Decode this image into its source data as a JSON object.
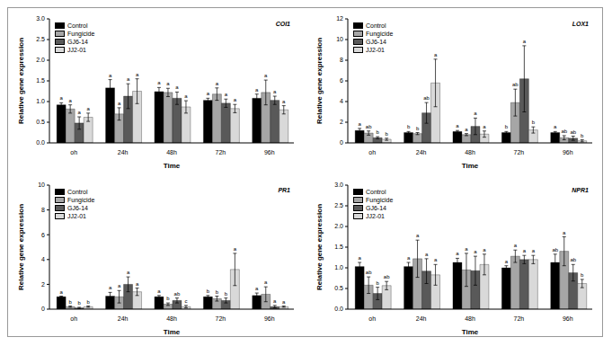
{
  "chart_data": [
    {
      "type": "bar",
      "title": "COI1",
      "x_label": "Time",
      "y_label": "Relative gene expression",
      "legend": "top-left",
      "categories": [
        "oh",
        "24h",
        "48h",
        "72h",
        "96h"
      ],
      "ylim": [
        0,
        3
      ],
      "yticks": [
        {
          "value": 0,
          "label": "0.0"
        },
        0.5,
        {
          "value": 1,
          "label": "1.0"
        },
        1.5,
        {
          "value": 2,
          "label": "2.0"
        },
        2.5,
        {
          "value": 3,
          "label": "3.0"
        }
      ],
      "series": [
        {
          "name": "Control",
          "color": "#000000",
          "values": [
            0.92,
            1.33,
            1.24,
            1.03,
            1.08
          ],
          "errors": [
            0.05,
            0.2,
            0.1,
            0.05,
            0.1
          ],
          "letters": [
            "a",
            "a",
            "a",
            "a",
            "a"
          ]
        },
        {
          "name": "Fungicide",
          "color": "#a6a6a6",
          "values": [
            0.82,
            0.7,
            1.22,
            1.18,
            1.22
          ],
          "errors": [
            0.1,
            0.15,
            0.1,
            0.15,
            0.3
          ],
          "letters": [
            "a",
            "a",
            "a",
            "a",
            "a"
          ]
        },
        {
          "name": "GJ6-14",
          "color": "#595959",
          "values": [
            0.48,
            1.13,
            1.08,
            0.96,
            1.03
          ],
          "errors": [
            0.15,
            0.3,
            0.15,
            0.1,
            0.1
          ],
          "letters": [
            "a",
            "a",
            "a",
            "a",
            "a"
          ]
        },
        {
          "name": "JJ2-01",
          "color": "#d9d9d9",
          "values": [
            0.62,
            1.25,
            0.87,
            0.83,
            0.8
          ],
          "errors": [
            0.1,
            0.3,
            0.15,
            0.1,
            0.1
          ],
          "letters": [
            "a",
            "a",
            "a",
            "a",
            "a"
          ]
        }
      ]
    },
    {
      "type": "bar",
      "title": "LOX1",
      "x_label": "Time",
      "y_label": "Relative gene expression",
      "legend": "top-left",
      "categories": [
        "oh",
        "24h",
        "48h",
        "72h",
        "96h"
      ],
      "ylim": [
        0,
        12
      ],
      "yticks": [
        0,
        2,
        4,
        6,
        8,
        10,
        12
      ],
      "series": [
        {
          "name": "Control",
          "color": "#000000",
          "values": [
            1.2,
            1.0,
            1.1,
            1.0,
            1.0
          ],
          "errors": [
            0.2,
            0.1,
            0.1,
            0.1,
            0.1
          ],
          "letters": [
            "a",
            "b",
            "a",
            "b",
            "a"
          ]
        },
        {
          "name": "Fungicide",
          "color": "#a6a6a6",
          "values": [
            0.95,
            0.9,
            0.8,
            3.9,
            0.5
          ],
          "errors": [
            0.2,
            0.1,
            0.1,
            1.3,
            0.2
          ],
          "letters": [
            "ab",
            "b",
            "a",
            "ab",
            "ab"
          ]
        },
        {
          "name": "GJ6-14",
          "color": "#595959",
          "values": [
            0.5,
            2.9,
            1.6,
            6.2,
            0.45
          ],
          "errors": [
            0.1,
            1.0,
            0.8,
            3.2,
            0.2
          ],
          "letters": [
            "b",
            "ab",
            "a",
            "a",
            "ab"
          ]
        },
        {
          "name": "JJ2-01",
          "color": "#d9d9d9",
          "values": [
            0.35,
            5.8,
            0.85,
            1.25,
            0.2
          ],
          "errors": [
            0.1,
            2.3,
            0.3,
            0.3,
            0.1
          ],
          "letters": [
            "b",
            "a",
            "a",
            "b",
            "b"
          ]
        }
      ]
    },
    {
      "type": "bar",
      "title": "PR1",
      "x_label": "Time",
      "y_label": "Relative gene expression",
      "legend": "top-left",
      "categories": [
        "oh",
        "24h",
        "48h",
        "72h",
        "96h"
      ],
      "ylim": [
        0,
        10
      ],
      "yticks": [
        0,
        2,
        4,
        6,
        8,
        10
      ],
      "series": [
        {
          "name": "Control",
          "color": "#000000",
          "values": [
            1.0,
            1.05,
            1.0,
            1.0,
            1.1
          ],
          "errors": [
            0.05,
            0.3,
            0.1,
            0.1,
            0.2
          ],
          "letters": [
            "a",
            "a",
            "a",
            "b",
            "a"
          ]
        },
        {
          "name": "Fungicide",
          "color": "#a6a6a6",
          "values": [
            0.2,
            1.0,
            0.4,
            0.85,
            1.2
          ],
          "errors": [
            0.05,
            0.5,
            0.1,
            0.2,
            0.6
          ],
          "letters": [
            "b",
            "a",
            "b",
            "b",
            "a"
          ]
        },
        {
          "name": "GJ6-14",
          "color": "#595959",
          "values": [
            0.1,
            2.0,
            0.7,
            0.7,
            0.2
          ],
          "errors": [
            0.05,
            0.6,
            0.2,
            0.2,
            0.1
          ],
          "letters": [
            "b",
            "a",
            "ab",
            "b",
            "a"
          ]
        },
        {
          "name": "JJ2-01",
          "color": "#d9d9d9",
          "values": [
            0.2,
            1.4,
            0.2,
            3.2,
            0.2
          ],
          "errors": [
            0.05,
            0.3,
            0.1,
            1.3,
            0.05
          ],
          "letters": [
            "b",
            "a",
            "c",
            "a",
            "a"
          ]
        }
      ]
    },
    {
      "type": "bar",
      "title": "NPR1",
      "x_label": "Time",
      "y_label": "Relative gene expression",
      "legend": "top-left",
      "categories": [
        "oh",
        "24h",
        "48h",
        "72h",
        "96h"
      ],
      "ylim": [
        0,
        3
      ],
      "yticks": [
        {
          "value": 0,
          "label": "0.0"
        },
        0.5,
        {
          "value": 1,
          "label": "1.0"
        },
        1.5,
        {
          "value": 2,
          "label": "2.0"
        },
        2.5,
        {
          "value": 3,
          "label": "3.0"
        }
      ],
      "series": [
        {
          "name": "Control",
          "color": "#000000",
          "values": [
            1.03,
            1.03,
            1.13,
            1.0,
            1.13
          ],
          "errors": [
            0.1,
            0.1,
            0.1,
            0.05,
            0.2
          ],
          "letters": [
            "a",
            "a",
            "a",
            "a",
            "ab"
          ]
        },
        {
          "name": "Fungicide",
          "color": "#a6a6a6",
          "values": [
            0.58,
            1.22,
            0.95,
            1.28,
            1.4
          ],
          "errors": [
            0.2,
            0.45,
            0.4,
            0.15,
            0.35
          ],
          "letters": [
            "ab",
            "a",
            "a",
            "a",
            "a"
          ]
        },
        {
          "name": "GJ6-14",
          "color": "#595959",
          "values": [
            0.38,
            0.92,
            0.93,
            1.2,
            0.88
          ],
          "errors": [
            0.15,
            0.3,
            0.35,
            0.1,
            0.2
          ],
          "letters": [
            "b",
            "a",
            "a",
            "a",
            "ab"
          ]
        },
        {
          "name": "JJ2-01",
          "color": "#d9d9d9",
          "values": [
            0.57,
            0.83,
            1.08,
            1.2,
            0.62
          ],
          "errors": [
            0.1,
            0.25,
            0.25,
            0.1,
            0.1
          ],
          "letters": [
            "ab",
            "a",
            "a",
            "a",
            "b"
          ]
        }
      ]
    }
  ]
}
